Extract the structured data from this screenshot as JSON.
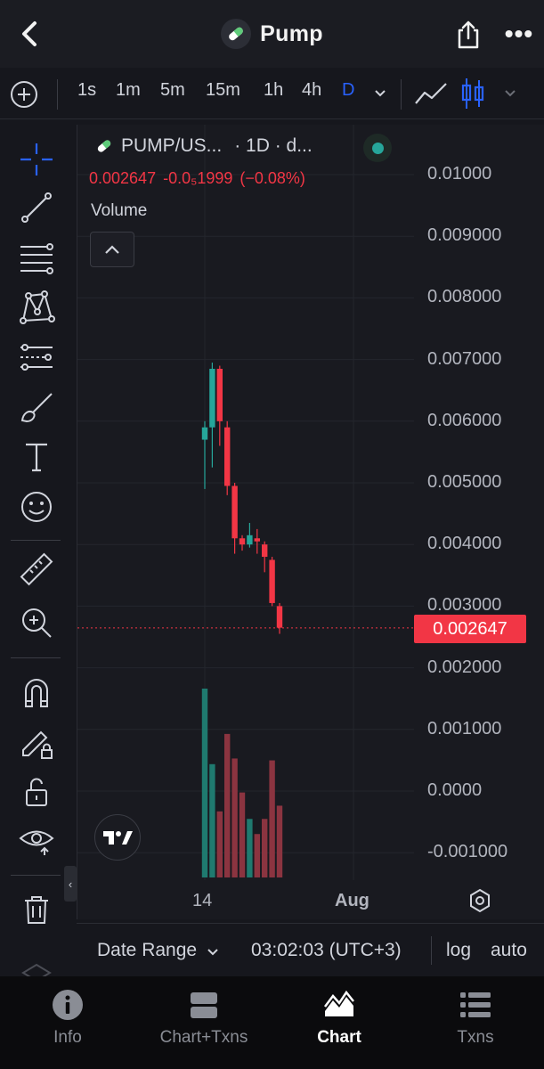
{
  "header": {
    "title": "Pump",
    "more_label": "•••"
  },
  "toolbar": {
    "intervals": [
      "1s",
      "1m",
      "5m",
      "15m",
      "1h",
      "4h",
      "D"
    ],
    "active_interval": "D"
  },
  "legend": {
    "symbol": "PUMP/US...",
    "meta": "· 1D · d...",
    "price": "0.002647",
    "change": "-0.0₅1999",
    "change_pct": "(−0.08%)",
    "volume_label": "Volume"
  },
  "chart_data": {
    "type": "candlestick",
    "price_axis_labels": [
      "0.01000",
      "0.009000",
      "0.008000",
      "0.007000",
      "0.006000",
      "0.005000",
      "0.004000",
      "0.003000",
      "0.002000",
      "0.001000",
      "0.0000",
      "-0.001000"
    ],
    "last_price_label": "0.002647",
    "last_price": 0.002647,
    "time_axis_labels": [
      "14",
      "Aug"
    ],
    "colors": {
      "up": "#26a69a",
      "down": "#f23645"
    },
    "candles": [
      {
        "o": 0.0057,
        "h": 0.006,
        "l": 0.0049,
        "c": 0.0059
      },
      {
        "o": 0.0059,
        "h": 0.00695,
        "l": 0.00525,
        "c": 0.00685
      },
      {
        "o": 0.00685,
        "h": 0.0069,
        "l": 0.0056,
        "c": 0.006
      },
      {
        "o": 0.0059,
        "h": 0.006,
        "l": 0.0048,
        "c": 0.00495
      },
      {
        "o": 0.00495,
        "h": 0.005,
        "l": 0.00385,
        "c": 0.0041
      },
      {
        "o": 0.0041,
        "h": 0.00415,
        "l": 0.0039,
        "c": 0.004
      },
      {
        "o": 0.004,
        "h": 0.00435,
        "l": 0.00395,
        "c": 0.00415
      },
      {
        "o": 0.0041,
        "h": 0.00425,
        "l": 0.00385,
        "c": 0.00405
      },
      {
        "o": 0.004,
        "h": 0.00405,
        "l": 0.00355,
        "c": 0.0038
      },
      {
        "o": 0.00375,
        "h": 0.0038,
        "l": 0.003,
        "c": 0.00305
      },
      {
        "o": 0.003,
        "h": 0.00305,
        "l": 0.00255,
        "c": 0.00265
      }
    ],
    "volumes": [
      1.0,
      0.6,
      0.35,
      0.76,
      0.63,
      0.45,
      0.31,
      0.23,
      0.31,
      0.62,
      0.38
    ]
  },
  "footer": {
    "date_range": "Date Range",
    "time": "03:02:03 (UTC+3)",
    "log": "log",
    "auto": "auto"
  },
  "tabs": [
    {
      "label": "Info",
      "icon": "info-icon"
    },
    {
      "label": "Chart+Txns",
      "icon": "split-view-icon"
    },
    {
      "label": "Chart",
      "icon": "chart-mountain-icon"
    },
    {
      "label": "Txns",
      "icon": "list-icon"
    }
  ],
  "active_tab": "Chart"
}
